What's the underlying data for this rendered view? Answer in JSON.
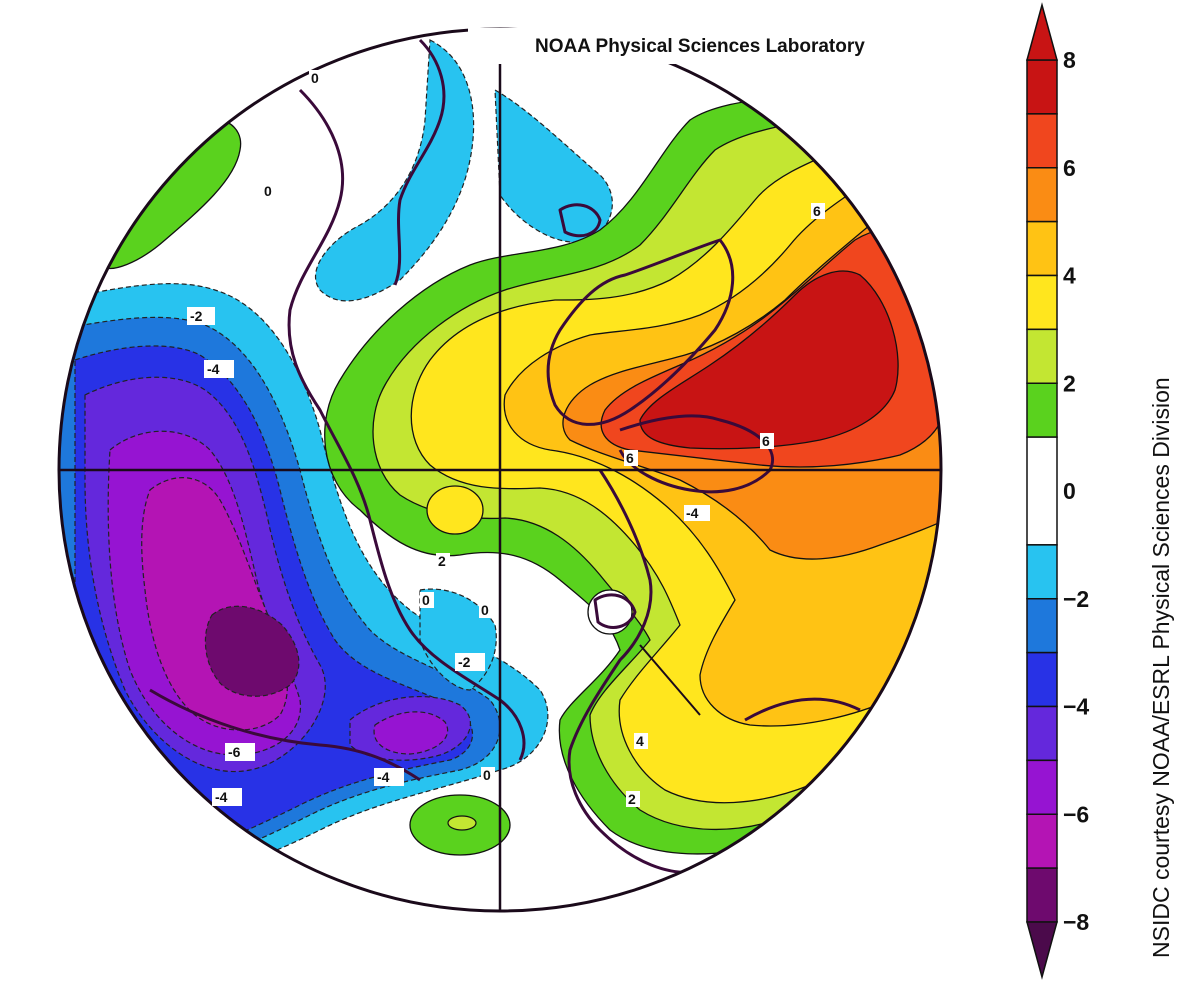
{
  "map": {
    "source_label": "NOAA Physical Sciences Laboratory",
    "credit": "NSIDC courtesy NOAA/ESRL Physical Sciences Division",
    "contour_labels": [
      "-2",
      "-4",
      "-6",
      "-4",
      "0",
      "-2",
      "-4",
      "0",
      "0",
      "2",
      "0",
      "6",
      "6",
      "6",
      "-4",
      "4",
      "2",
      "0"
    ],
    "colors": {
      "ocean_land_outline": "#3a0a3a",
      "contour_line": "#1a1a1a",
      "frame": "#1a0a1a"
    }
  },
  "colorbar": {
    "tick_labels": [
      "8",
      "6",
      "4",
      "2",
      "0",
      "−2",
      "−4",
      "−6",
      "−8"
    ],
    "tick_values": [
      8,
      6,
      4,
      2,
      0,
      -2,
      -4,
      -6,
      -8
    ],
    "bins": [
      {
        "from": 7,
        "to": 8,
        "color": "#c81414"
      },
      {
        "from": 6,
        "to": 7,
        "color": "#f0461e"
      },
      {
        "from": 5,
        "to": 6,
        "color": "#fa8c14"
      },
      {
        "from": 4,
        "to": 5,
        "color": "#ffc314"
      },
      {
        "from": 3,
        "to": 4,
        "color": "#ffe61e"
      },
      {
        "from": 2,
        "to": 3,
        "color": "#c3e632"
      },
      {
        "from": 1,
        "to": 2,
        "color": "#5ad21e"
      },
      {
        "from": -1,
        "to": 1,
        "color": "#ffffff"
      },
      {
        "from": -2,
        "to": -1,
        "color": "#28c3f0"
      },
      {
        "from": -3,
        "to": -2,
        "color": "#1e78dc"
      },
      {
        "from": -4,
        "to": -3,
        "color": "#2832e6"
      },
      {
        "from": -5,
        "to": -4,
        "color": "#6428dc"
      },
      {
        "from": -6,
        "to": -5,
        "color": "#9614d2"
      },
      {
        "from": -7,
        "to": -6,
        "color": "#b414b4"
      },
      {
        "from": -8,
        "to": -7,
        "color": "#6e0a6e"
      }
    ],
    "over_color": "#c81414",
    "under_color": "#4b0a4b"
  }
}
